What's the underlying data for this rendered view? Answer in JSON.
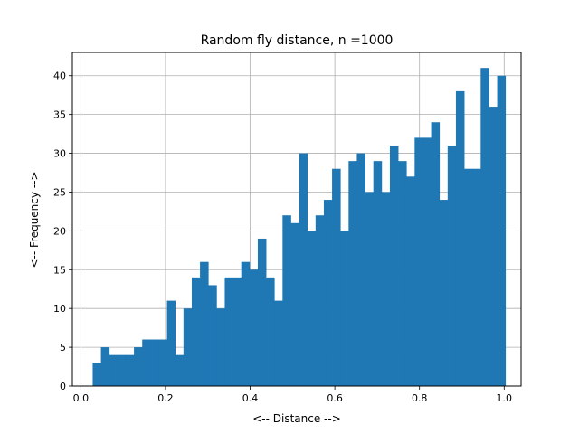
{
  "chart_data": {
    "type": "bar",
    "title": "Random fly distance, n =1000",
    "xlabel": "<-- Distance -->",
    "ylabel": "<-- Frequency -->",
    "xlim": [
      -0.02,
      1.04
    ],
    "ylim": [
      0,
      43
    ],
    "grid": true,
    "bar_color": "#1f77b4",
    "bin_edges": [
      0.028,
      0.0475,
      0.067,
      0.0865,
      0.106,
      0.1255,
      0.145,
      0.1645,
      0.184,
      0.2035,
      0.223,
      0.2425,
      0.262,
      0.2815,
      0.301,
      0.3205,
      0.34,
      0.3595,
      0.379,
      0.3985,
      0.418,
      0.4375,
      0.457,
      0.4765,
      0.496,
      0.5155,
      0.535,
      0.5545,
      0.574,
      0.5935,
      0.613,
      0.6325,
      0.652,
      0.6715,
      0.691,
      0.7105,
      0.73,
      0.7495,
      0.769,
      0.7885,
      0.808,
      0.8275,
      0.847,
      0.8665,
      0.886,
      0.9055,
      0.925,
      0.9445,
      0.964,
      0.9835,
      1.003
    ],
    "values": [
      3,
      5,
      4,
      4,
      4,
      5,
      6,
      6,
      6,
      11,
      4,
      10,
      14,
      16,
      13,
      10,
      14,
      14,
      16,
      15,
      19,
      14,
      11,
      22,
      21,
      30,
      20,
      22,
      24,
      28,
      20,
      29,
      30,
      25,
      29,
      25,
      31,
      29,
      27,
      32,
      32,
      34,
      24,
      31,
      38,
      28,
      28,
      41,
      36,
      40
    ],
    "x_ticks": [
      0.0,
      0.2,
      0.4,
      0.6,
      0.8,
      1.0
    ],
    "x_tick_labels": [
      "0.0",
      "0.2",
      "0.4",
      "0.6",
      "0.8",
      "1.0"
    ],
    "y_ticks": [
      0,
      5,
      10,
      15,
      20,
      25,
      30,
      35,
      40
    ],
    "y_tick_labels": [
      "0",
      "5",
      "10",
      "15",
      "20",
      "25",
      "30",
      "35",
      "40"
    ]
  }
}
